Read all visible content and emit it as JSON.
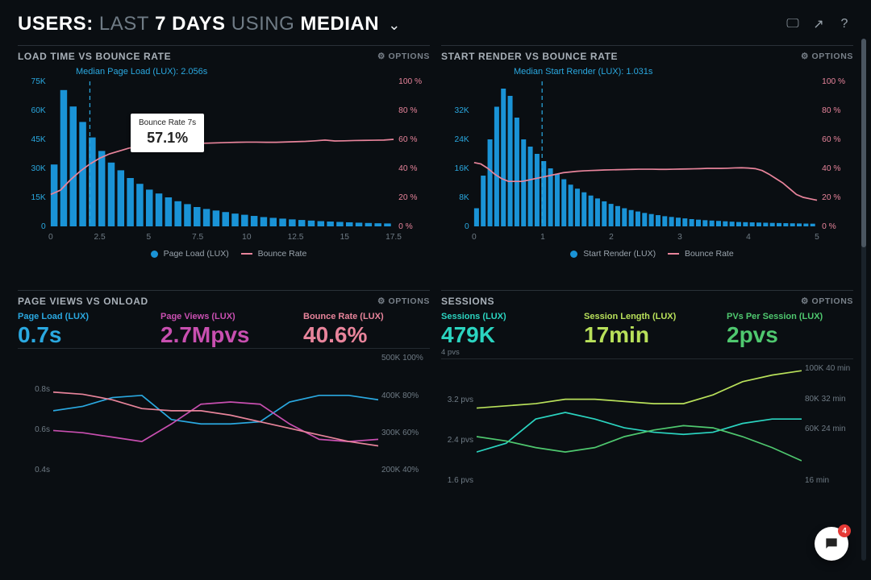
{
  "header": {
    "title_prefix": "USERS:",
    "title_span1": "LAST",
    "title_bold1": "7 DAYS",
    "title_span2": "USING",
    "title_bold2": "MEDIAN"
  },
  "options_label": "OPTIONS",
  "panels": {
    "loadtime": {
      "title": "LOAD TIME VS BOUNCE RATE",
      "hint": "Median Page Load (LUX): 2.056s",
      "tooltip_label": "Bounce Rate 7s",
      "tooltip_value": "57.1%",
      "type": "bar+line",
      "left_axis": {
        "max": 75000,
        "ticks": [
          "75K",
          "60K",
          "45K",
          "30K",
          "15K",
          "0"
        ],
        "color": "#2aa8e0"
      },
      "right_axis": {
        "max": 100,
        "ticks": [
          "100 %",
          "80 %",
          "60 %",
          "40 %",
          "20 %",
          "0 %"
        ],
        "color": "#e8849b"
      },
      "x_ticks": [
        "0",
        "2.5",
        "5",
        "7.5",
        "10",
        "12.5",
        "15",
        "17.5"
      ],
      "median_x": 2.056,
      "x_max": 18,
      "bars": [
        32000,
        70500,
        62000,
        54000,
        46000,
        39000,
        33000,
        29000,
        25000,
        22000,
        19000,
        17000,
        15000,
        13000,
        11500,
        10000,
        9000,
        8200,
        7400,
        6600,
        6000,
        5400,
        4800,
        4400,
        4000,
        3600,
        3300,
        3000,
        2700,
        2500,
        2300,
        2100,
        1900,
        1750,
        1600,
        1500
      ],
      "bounce": [
        22,
        25,
        32,
        38,
        43,
        47,
        50,
        52,
        54,
        55,
        55.5,
        56,
        56.5,
        57,
        57.1,
        57.3,
        57.4,
        57.6,
        57.8,
        58,
        58.1,
        58.1,
        58,
        58,
        58.2,
        58.4,
        58.6,
        59,
        59.5,
        58.9,
        59,
        59.2,
        59.3,
        59.4,
        59.5,
        60
      ],
      "bar_color": "#1a93d6",
      "line_color": "#e8849b",
      "legend_bar": "Page Load (LUX)",
      "legend_line": "Bounce Rate"
    },
    "startrender": {
      "title": "START RENDER VS BOUNCE RATE",
      "hint": "Median Start Render (LUX): 1.031s",
      "type": "bar+line",
      "left_axis": {
        "max": 40000,
        "ticks": [
          "",
          "32K",
          "24K",
          "16K",
          "8K",
          "0"
        ],
        "color": "#2aa8e0"
      },
      "right_axis": {
        "max": 100,
        "ticks": [
          "100 %",
          "80 %",
          "60 %",
          "40 %",
          "20 %",
          "0 %"
        ],
        "color": "#e8849b"
      },
      "x_ticks": [
        "0",
        "1",
        "2",
        "3",
        "4",
        "5"
      ],
      "median_x": 1.031,
      "x_max": 5.2,
      "bars": [
        5000,
        14000,
        24000,
        33000,
        38000,
        36000,
        30000,
        24000,
        22000,
        20000,
        18000,
        16000,
        14500,
        13000,
        11500,
        10400,
        9400,
        8500,
        7700,
        6900,
        6200,
        5600,
        5000,
        4500,
        4100,
        3700,
        3400,
        3100,
        2800,
        2600,
        2400,
        2200,
        2000,
        1850,
        1700,
        1600,
        1500,
        1400,
        1300,
        1200,
        1150,
        1100,
        1050,
        1000,
        960,
        920,
        880,
        840,
        800,
        770,
        740
      ],
      "bounce": [
        44,
        43,
        40,
        36,
        33,
        31,
        31,
        31,
        32,
        33,
        34,
        35,
        36,
        37,
        37.5,
        38,
        38.3,
        38.5,
        38.7,
        38.9,
        39,
        39.1,
        39.2,
        39.3,
        39.4,
        39.4,
        39.4,
        39.3,
        39.3,
        39.4,
        39.5,
        39.6,
        39.7,
        39.8,
        40,
        40,
        40,
        40.1,
        40.3,
        40.4,
        40.2,
        39.8,
        38.5,
        36,
        33,
        30,
        26,
        22,
        20,
        19,
        18
      ],
      "bar_color": "#1a93d6",
      "line_color": "#e8849b",
      "legend_bar": "Start Render (LUX)",
      "legend_line": "Bounce Rate"
    },
    "pageviews": {
      "title": "PAGE VIEWS VS ONLOAD",
      "metrics": [
        {
          "label": "Page Load (LUX)",
          "value": "0.7s",
          "color": "#2aa8e0"
        },
        {
          "label": "Page Views (LUX)",
          "value": "2.7Mpvs",
          "color": "#c84fb0"
        },
        {
          "label": "Bounce Rate (LUX)",
          "value": "40.6%",
          "color": "#e8849b"
        }
      ],
      "left_ticks": [
        "",
        "0.8s",
        "0.6s",
        "0.4s"
      ],
      "right_ticks": [
        "500K  100%",
        "400K  80%",
        "300K  60%",
        "200K  40%"
      ],
      "lines": {
        "blue": {
          "color": "#2aa8e0",
          "pts": [
            58,
            62,
            70,
            72,
            50,
            46,
            46,
            48,
            66,
            72,
            72,
            68
          ]
        },
        "magenta": {
          "color": "#c84fb0",
          "pts": [
            40,
            38,
            34,
            30,
            46,
            64,
            66,
            64,
            46,
            32,
            30,
            32
          ]
        },
        "pink": {
          "color": "#e8849b",
          "pts": [
            75,
            73,
            68,
            60,
            58,
            58,
            54,
            48,
            42,
            36,
            30,
            26
          ]
        }
      }
    },
    "sessions": {
      "title": "SESSIONS",
      "metrics": [
        {
          "label": "Sessions (LUX)",
          "value": "479K",
          "sub": "4 pvs",
          "color": "#2bd4c0"
        },
        {
          "label": "Session Length (LUX)",
          "value": "17min",
          "color": "#b8e05a"
        },
        {
          "label": "PVs Per Session (LUX)",
          "value": "2pvs",
          "color": "#4fc86f"
        }
      ],
      "left_ticks": [
        "",
        "3.2 pvs",
        "2.4 pvs",
        "1.6 pvs"
      ],
      "right_ticks": [
        "100K  40 min",
        "80K  32 min",
        "60K  24 min",
        "",
        "16 min"
      ],
      "lines": {
        "teal": {
          "color": "#2bd4c0",
          "pts": [
            30,
            38,
            60,
            66,
            60,
            52,
            48,
            46,
            48,
            56,
            60,
            60
          ]
        },
        "lime": {
          "color": "#b8e05a",
          "pts": [
            70,
            72,
            74,
            78,
            78,
            76,
            74,
            74,
            82,
            94,
            100,
            104
          ]
        },
        "green": {
          "color": "#4fc86f",
          "pts": [
            44,
            40,
            34,
            30,
            34,
            44,
            50,
            54,
            52,
            44,
            34,
            22
          ]
        }
      }
    }
  },
  "chat_badge": "4",
  "colors": {
    "bg": "#0a0e12",
    "panel_border": "#2a3138",
    "text": "#d0d4d8",
    "muted": "#6f7b85"
  }
}
